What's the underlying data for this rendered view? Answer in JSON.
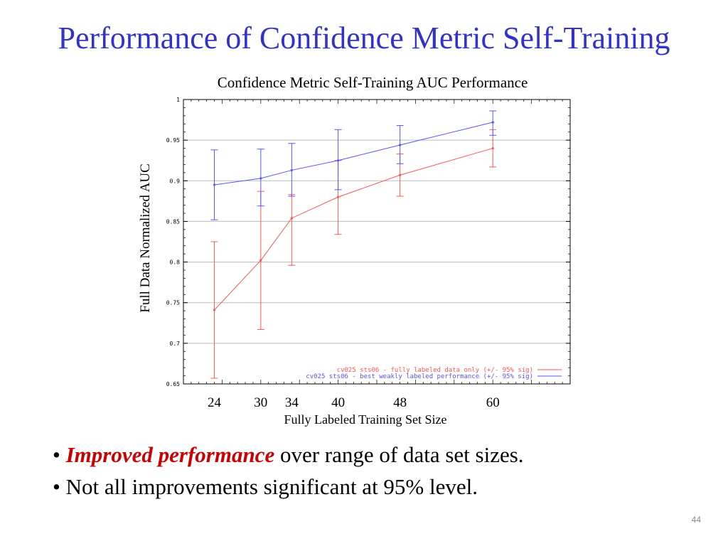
{
  "slide": {
    "title": "Performance of Confidence Metric Self-Training",
    "page_number": "44",
    "bullets": [
      {
        "bullet": "•",
        "emphasis": "Improved performance",
        "text": " over range of data set sizes."
      },
      {
        "bullet": "•",
        "emphasis": "",
        "text": "Not all improvements significant at 95% level."
      }
    ]
  },
  "colors": {
    "title": "#3333cc",
    "series_red": "#ff5555",
    "series_blue": "#5555ff",
    "emphasis": "#cc0000"
  },
  "chart_data": {
    "type": "line",
    "title": "Confidence Metric Self-Training AUC Performance",
    "xlabel": "Fully Labeled Training Set Size",
    "ylabel": "Full Data Normalized AUC",
    "x": [
      24,
      30,
      34,
      40,
      48,
      60
    ],
    "xtick_labels": [
      "24",
      "30",
      "34",
      "40",
      "48",
      "60"
    ],
    "xlim": [
      20,
      70
    ],
    "ylim": [
      0.65,
      1.0
    ],
    "yticks": [
      "0.65",
      "0.7",
      "0.75",
      "0.8",
      "0.85",
      "0.9",
      "0.95",
      "1"
    ],
    "grid": true,
    "legend_position": "bottom-right",
    "series": [
      {
        "name": "cv025 sts06 - fully labeled data only (+/- 95% sig)",
        "color": "#ff5555",
        "values": [
          0.741,
          0.802,
          0.854,
          0.88,
          0.907,
          0.94
        ],
        "err_low": [
          0.657,
          0.717,
          0.796,
          0.834,
          0.881,
          0.917
        ],
        "err_high": [
          0.825,
          0.887,
          0.883,
          0.925,
          0.933,
          0.963
        ]
      },
      {
        "name": "cv025 sts06 - best weakly labeled performance (+/- 95% sig)",
        "color": "#5555ff",
        "values": [
          0.895,
          0.903,
          0.913,
          0.925,
          0.944,
          0.972
        ],
        "err_low": [
          0.852,
          0.869,
          0.881,
          0.889,
          0.921,
          0.956
        ],
        "err_high": [
          0.938,
          0.939,
          0.946,
          0.963,
          0.968,
          0.986
        ]
      }
    ]
  }
}
